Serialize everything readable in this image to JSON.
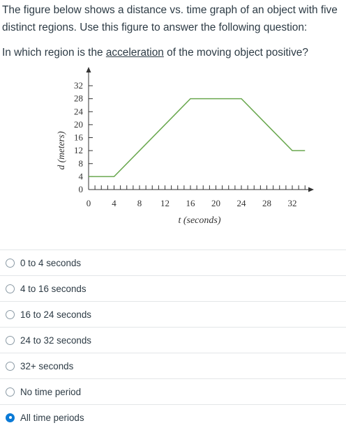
{
  "question": {
    "line1": "The figure below shows a distance vs. time graph of an object with five distinct regions. Use this figure to answer the following question:",
    "q_before": "In which region is the ",
    "q_underlined": "acceleration",
    "q_after": " of the moving object positive?"
  },
  "chart_data": {
    "type": "line",
    "xlabel": "t (seconds)",
    "ylabel": "d (meters)",
    "xlim": [
      0,
      32
    ],
    "ylim": [
      0,
      32
    ],
    "x_ticks": [
      0,
      4,
      8,
      12,
      16,
      20,
      24,
      28,
      32
    ],
    "y_ticks": [
      0,
      4,
      8,
      12,
      16,
      20,
      24,
      28,
      32
    ],
    "series": [
      {
        "x": [
          0,
          4,
          16,
          24,
          32,
          34
        ],
        "y": [
          4,
          4,
          28,
          28,
          12,
          12
        ],
        "color": "#6aa84f"
      }
    ]
  },
  "answers": [
    {
      "label": "0 to 4 seconds",
      "selected": false
    },
    {
      "label": "4 to 16 seconds",
      "selected": false
    },
    {
      "label": "16 to 24 seconds",
      "selected": false
    },
    {
      "label": "24 to 32 seconds",
      "selected": false
    },
    {
      "label": "32+ seconds",
      "selected": false
    },
    {
      "label": "No time period",
      "selected": false
    },
    {
      "label": "All time periods",
      "selected": true
    }
  ]
}
